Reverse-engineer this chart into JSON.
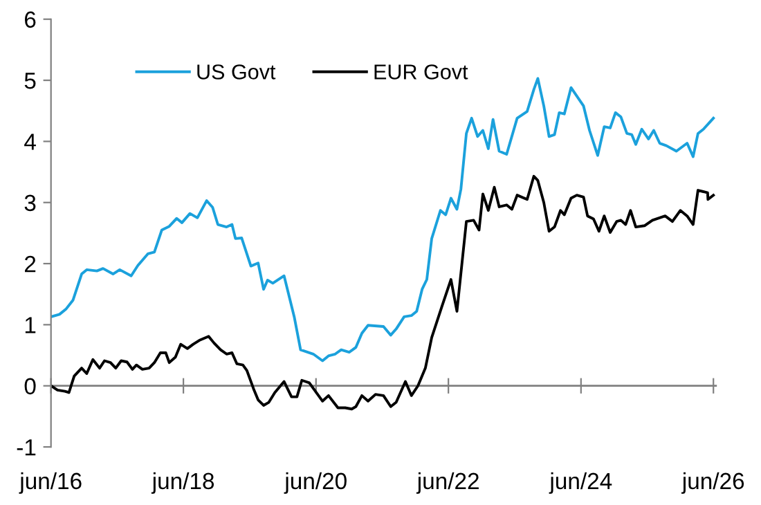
{
  "chart_data": {
    "type": "line",
    "xlim": [
      "2016-06-01",
      "2026-06-20"
    ],
    "xticks": [
      {
        "value": "2016-06",
        "label": "jun/16"
      },
      {
        "value": "2018-06",
        "label": "jun/18"
      },
      {
        "value": "2020-06",
        "label": "jun/20"
      },
      {
        "value": "2022-06",
        "label": "jun/22"
      },
      {
        "value": "2024-06",
        "label": "jun/24"
      },
      {
        "value": "2026-06",
        "label": "jun/26"
      }
    ],
    "ylim": [
      -1,
      6
    ],
    "yticks": [
      -1,
      0,
      1,
      2,
      3,
      4,
      5,
      6
    ],
    "ref_lines": [
      {
        "axis": "y",
        "value": 0,
        "color": "#808080"
      }
    ],
    "grid": false,
    "legend": "top left",
    "marker": "none",
    "line_style": "solid",
    "series": [
      {
        "name": "US Govt",
        "color": "#1ba1dc",
        "x": [
          "2016-06-01",
          "2016-07-18",
          "2016-08-24",
          "2016-09-30",
          "2016-11-17",
          "2016-12-15",
          "2017-02-09",
          "2017-03-15",
          "2017-05-09",
          "2017-06-15",
          "2017-08-17",
          "2017-09-23",
          "2017-11-17",
          "2017-12-23",
          "2018-02-02",
          "2018-03-15",
          "2018-04-25",
          "2018-05-24",
          "2018-07-07",
          "2018-08-17",
          "2018-10-07",
          "2018-11-09",
          "2018-12-08",
          "2019-01-25",
          "2019-02-24",
          "2019-03-15",
          "2019-04-18",
          "2019-06-08",
          "2019-07-18",
          "2019-08-17",
          "2019-09-08",
          "2019-10-07",
          "2019-12-08",
          "2020-02-02",
          "2020-03-08",
          "2020-05-17",
          "2020-07-07",
          "2020-08-09",
          "2020-09-15",
          "2020-10-18",
          "2020-12-01",
          "2021-01-07",
          "2021-02-09",
          "2021-03-15",
          "2021-06-08",
          "2021-07-18",
          "2021-08-17",
          "2021-09-30",
          "2021-11-09",
          "2021-12-08",
          "2022-01-07",
          "2022-02-02",
          "2022-03-01",
          "2022-04-18",
          "2022-05-17",
          "2022-06-15",
          "2022-07-18",
          "2022-08-09",
          "2022-09-08",
          "2022-10-07",
          "2022-11-09",
          "2022-12-08",
          "2023-01-07",
          "2023-02-02",
          "2023-03-08",
          "2023-04-18",
          "2023-06-15",
          "2023-08-09",
          "2023-09-15",
          "2023-10-07",
          "2023-11-09",
          "2023-12-08",
          "2024-01-07",
          "2024-02-02",
          "2024-03-01",
          "2024-04-07",
          "2024-06-15",
          "2024-07-18",
          "2024-09-01",
          "2024-10-07",
          "2024-11-09",
          "2024-12-08",
          "2025-01-07",
          "2025-02-09",
          "2025-03-08",
          "2025-03-30",
          "2025-05-02",
          "2025-06-08",
          "2025-07-07",
          "2025-08-09",
          "2025-09-15",
          "2025-11-09",
          "2026-01-07",
          "2026-02-09",
          "2026-03-08",
          "2026-04-07",
          "2026-06-01"
        ],
        "values": [
          1.13,
          1.17,
          1.26,
          1.4,
          1.83,
          1.9,
          1.88,
          1.92,
          1.83,
          1.9,
          1.8,
          1.97,
          2.16,
          2.19,
          2.55,
          2.61,
          2.74,
          2.67,
          2.82,
          2.75,
          3.03,
          2.92,
          2.64,
          2.6,
          2.64,
          2.41,
          2.42,
          1.96,
          2.01,
          1.58,
          1.73,
          1.68,
          1.8,
          1.13,
          0.59,
          0.52,
          0.41,
          0.49,
          0.52,
          0.59,
          0.55,
          0.63,
          0.86,
          0.99,
          0.97,
          0.83,
          0.93,
          1.13,
          1.15,
          1.22,
          1.58,
          1.74,
          2.41,
          2.87,
          2.8,
          3.07,
          2.89,
          3.22,
          4.13,
          4.38,
          4.08,
          4.18,
          3.88,
          4.36,
          3.84,
          3.79,
          4.38,
          4.49,
          4.85,
          5.03,
          4.58,
          4.08,
          4.11,
          4.47,
          4.45,
          4.88,
          4.58,
          4.18,
          3.77,
          4.24,
          4.22,
          4.47,
          4.4,
          4.13,
          4.11,
          3.95,
          4.2,
          4.04,
          4.18,
          3.97,
          3.93,
          3.84,
          3.97,
          3.75,
          4.13,
          4.2,
          4.38
        ]
      },
      {
        "name": "EUR Govt",
        "color": "#000000",
        "x": [
          "2016-06-01",
          "2016-07-07",
          "2016-08-17",
          "2016-09-08",
          "2016-10-07",
          "2016-11-17",
          "2016-12-15",
          "2017-01-18",
          "2017-02-24",
          "2017-03-23",
          "2017-04-25",
          "2017-05-24",
          "2017-06-23",
          "2017-07-25",
          "2017-08-24",
          "2017-09-15",
          "2017-10-18",
          "2017-11-24",
          "2017-12-23",
          "2018-01-25",
          "2018-02-24",
          "2018-03-15",
          "2018-04-18",
          "2018-05-17",
          "2018-06-23",
          "2018-07-25",
          "2018-09-01",
          "2018-10-18",
          "2018-11-17",
          "2018-12-23",
          "2019-01-25",
          "2019-02-24",
          "2019-03-23",
          "2019-04-25",
          "2019-05-17",
          "2019-06-23",
          "2019-07-18",
          "2019-08-17",
          "2019-09-15",
          "2019-10-18",
          "2019-12-08",
          "2020-01-18",
          "2020-02-17",
          "2020-03-15",
          "2020-04-25",
          "2020-05-24",
          "2020-07-07",
          "2020-08-09",
          "2020-09-30",
          "2020-11-09",
          "2020-12-15",
          "2021-01-07",
          "2021-02-09",
          "2021-03-15",
          "2021-04-25",
          "2021-06-08",
          "2021-07-18",
          "2021-08-17",
          "2021-10-07",
          "2021-11-09",
          "2021-12-15",
          "2022-01-25",
          "2022-03-01",
          "2022-04-25",
          "2022-06-15",
          "2022-07-18",
          "2022-09-08",
          "2022-10-18",
          "2022-11-17",
          "2022-12-08",
          "2023-01-07",
          "2023-02-09",
          "2023-03-08",
          "2023-04-18",
          "2023-05-17",
          "2023-06-15",
          "2023-08-09",
          "2023-09-15",
          "2023-10-07",
          "2023-11-09",
          "2023-12-08",
          "2024-01-07",
          "2024-02-09",
          "2024-03-01",
          "2024-04-07",
          "2024-05-09",
          "2024-06-15",
          "2024-07-07",
          "2024-08-09",
          "2024-09-08",
          "2024-10-07",
          "2024-11-09",
          "2024-12-15",
          "2025-01-07",
          "2025-02-02",
          "2025-03-01",
          "2025-03-30",
          "2025-05-17",
          "2025-06-30",
          "2025-09-08",
          "2025-10-18",
          "2025-12-01",
          "2026-01-07",
          "2026-02-09",
          "2026-03-08",
          "2026-04-30",
          "2026-05-02",
          "2026-06-01"
        ],
        "values": [
          0,
          -0.07,
          -0.09,
          -0.11,
          0.16,
          0.29,
          0.2,
          0.43,
          0.29,
          0.41,
          0.38,
          0.29,
          0.41,
          0.39,
          0.27,
          0.34,
          0.27,
          0.29,
          0.38,
          0.54,
          0.54,
          0.38,
          0.47,
          0.68,
          0.61,
          0.68,
          0.75,
          0.81,
          0.7,
          0.59,
          0.52,
          0.54,
          0.36,
          0.34,
          0.25,
          -0.05,
          -0.23,
          -0.32,
          -0.27,
          -0.11,
          0.07,
          -0.18,
          -0.18,
          0.09,
          0.05,
          -0.07,
          -0.25,
          -0.16,
          -0.36,
          -0.36,
          -0.38,
          -0.34,
          -0.16,
          -0.25,
          -0.14,
          -0.16,
          -0.34,
          -0.27,
          0.07,
          -0.16,
          0,
          0.29,
          0.79,
          1.29,
          1.74,
          1.22,
          2.69,
          2.71,
          2.55,
          3.14,
          2.87,
          3.25,
          2.93,
          2.96,
          2.89,
          3.12,
          3.05,
          3.43,
          3.36,
          3.0,
          2.53,
          2.6,
          2.87,
          2.8,
          3.07,
          3.12,
          3.09,
          2.78,
          2.73,
          2.53,
          2.78,
          2.51,
          2.69,
          2.71,
          2.64,
          2.87,
          2.6,
          2.62,
          2.71,
          2.78,
          2.69,
          2.87,
          2.78,
          2.64,
          3.2,
          3.16,
          3.05,
          3.12
        ]
      }
    ]
  }
}
